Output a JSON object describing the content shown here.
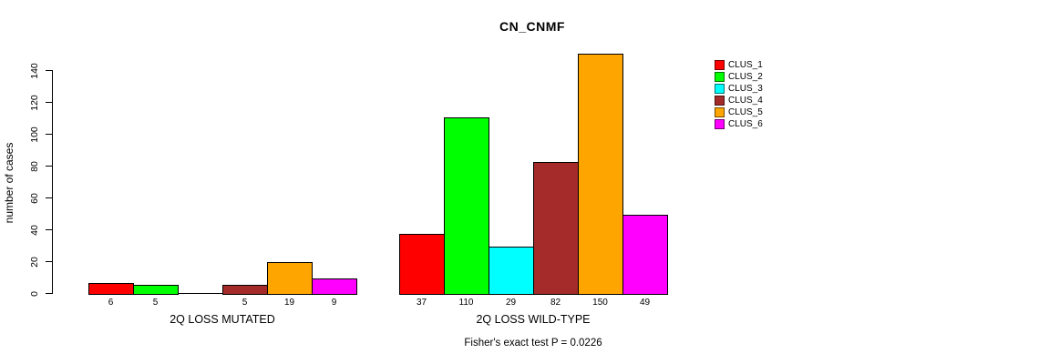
{
  "chart_data": {
    "type": "bar",
    "title": "CN_CNMF",
    "ylabel": "number of cases",
    "xlabel": "",
    "y_ticks": [
      0,
      20,
      40,
      60,
      80,
      100,
      120,
      140
    ],
    "ylim": [
      0,
      150
    ],
    "grid": false,
    "legend_position": "right-outside",
    "clusters": [
      {
        "name": "CLUS_1",
        "color": "#FF0000"
      },
      {
        "name": "CLUS_2",
        "color": "#00FF00"
      },
      {
        "name": "CLUS_3",
        "color": "#00FFFF"
      },
      {
        "name": "CLUS_4",
        "color": "#A52A2A"
      },
      {
        "name": "CLUS_5",
        "color": "#FFA500"
      },
      {
        "name": "CLUS_6",
        "color": "#FF00FF"
      }
    ],
    "groups": [
      {
        "label": "2Q LOSS MUTATED",
        "values": [
          6,
          5,
          0,
          5,
          19,
          9
        ],
        "bar_labels": [
          "6",
          "5",
          "",
          "5",
          "19",
          "9"
        ]
      },
      {
        "label": "2Q LOSS WILD-TYPE",
        "values": [
          37,
          110,
          29,
          82,
          150,
          49
        ],
        "bar_labels": [
          "37",
          "110",
          "29",
          "82",
          "150",
          "49"
        ]
      }
    ],
    "annotation": "Fisher's exact test P = 0.0226"
  }
}
